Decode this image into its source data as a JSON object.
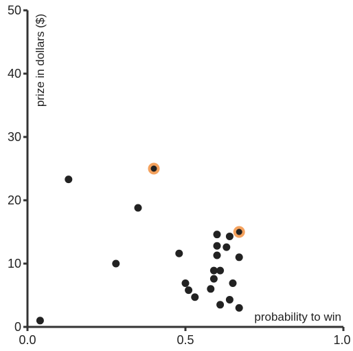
{
  "chart_data": {
    "type": "scatter",
    "xlabel": "probability to win",
    "ylabel": "prize in dollars ($)",
    "xlim": [
      0,
      1
    ],
    "ylim": [
      0,
      50
    ],
    "x_ticks": [
      0,
      0.5,
      1
    ],
    "x_tick_labels": [
      "0.0",
      "0.5",
      "1.0"
    ],
    "y_ticks": [
      0,
      10,
      20,
      30,
      40,
      50
    ],
    "y_tick_labels": [
      "0",
      "10",
      "20",
      "30",
      "40",
      "50"
    ],
    "grid": false,
    "highlight_color": "#f4a25e",
    "point_color": "#222222",
    "points": [
      {
        "x": 0.04,
        "y": 1.0
      },
      {
        "x": 0.13,
        "y": 23.3
      },
      {
        "x": 0.28,
        "y": 10.0
      },
      {
        "x": 0.35,
        "y": 18.8
      },
      {
        "x": 0.4,
        "y": 25.0,
        "highlight": true
      },
      {
        "x": 0.48,
        "y": 11.6
      },
      {
        "x": 0.5,
        "y": 6.9
      },
      {
        "x": 0.51,
        "y": 5.8
      },
      {
        "x": 0.53,
        "y": 4.7
      },
      {
        "x": 0.58,
        "y": 6.0
      },
      {
        "x": 0.59,
        "y": 8.9
      },
      {
        "x": 0.59,
        "y": 7.6
      },
      {
        "x": 0.6,
        "y": 11.3
      },
      {
        "x": 0.6,
        "y": 14.6
      },
      {
        "x": 0.6,
        "y": 12.8
      },
      {
        "x": 0.61,
        "y": 3.5
      },
      {
        "x": 0.61,
        "y": 8.9
      },
      {
        "x": 0.63,
        "y": 12.6
      },
      {
        "x": 0.64,
        "y": 4.3
      },
      {
        "x": 0.64,
        "y": 14.3
      },
      {
        "x": 0.65,
        "y": 6.9
      },
      {
        "x": 0.67,
        "y": 3.0
      },
      {
        "x": 0.67,
        "y": 11.0
      },
      {
        "x": 0.67,
        "y": 15.0,
        "highlight": true
      }
    ]
  }
}
